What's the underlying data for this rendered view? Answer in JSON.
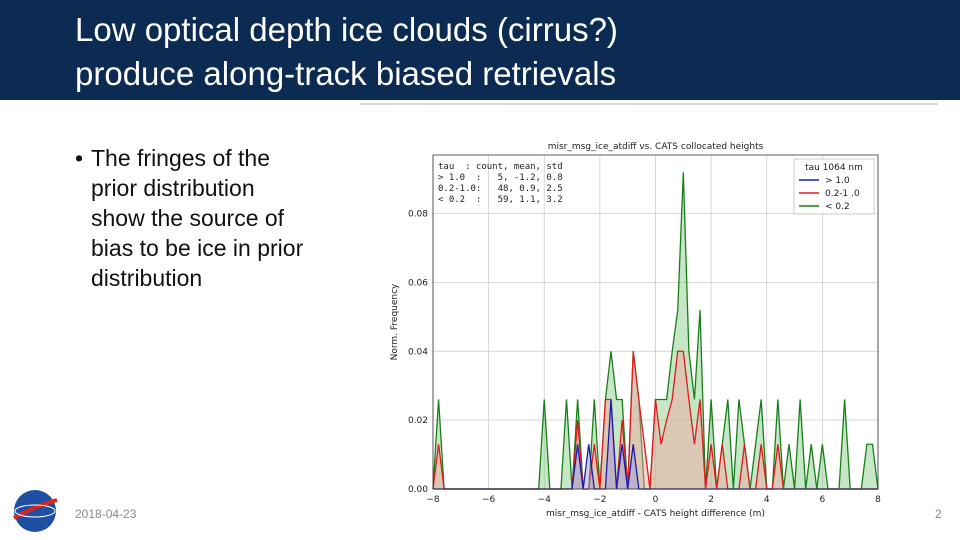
{
  "slide": {
    "title": [
      "Low optical depth ice clouds (cirrus?)",
      "produce along-track biased retrievals"
    ],
    "bullet_lines": [
      "The fringes of the",
      "prior distribution",
      "show the source of",
      "bias to be ice in prior",
      "distribution"
    ],
    "date": "2018-04-23",
    "page_number": "2"
  },
  "chart_data": {
    "type": "area",
    "title": "misr_msg_ice_atdiff vs. CATS collocated heights",
    "x_label": "misr_msg_ice_atdiff - CATS height difference (m)",
    "y_label": "Norm. Frequency",
    "annotations": [
      "tau  : count, mean, std",
      "> 1.0  :   5, -1.2, 0.8",
      "0.2-1.0:   48, 0.9, 2.5",
      "< 0.2  :   59, 1.1, 3.2"
    ],
    "legend_title": "tau 1064 nm",
    "legend_position": "upper right",
    "grid": true,
    "xlim": [
      -8,
      8
    ],
    "ylim": [
      0,
      0.097
    ],
    "xticks": [
      {
        "value": -8,
        "label": "−8"
      },
      {
        "value": -6,
        "label": "−6"
      },
      {
        "value": -4,
        "label": "−4"
      },
      {
        "value": -2,
        "label": "−2"
      },
      0,
      2,
      4,
      6,
      8
    ],
    "yticks": [
      {
        "value": 0,
        "label": "0.00"
      },
      0.02,
      0.04,
      0.06,
      0.08
    ],
    "x": [
      -8,
      -7.8,
      -7.6,
      -7.4,
      -7.2,
      -7,
      -6.8,
      -6.6,
      -6.4,
      -6.2,
      -6,
      -5.8,
      -5.6,
      -5.4,
      -5.2,
      -5,
      -4.8,
      -4.6,
      -4.4,
      -4.2,
      -4,
      -3.8,
      -3.6,
      -3.4,
      -3.2,
      -3,
      -2.8,
      -2.6,
      -2.4,
      -2.2,
      -2,
      -1.8,
      -1.6,
      -1.4,
      -1.2,
      -1,
      -0.8,
      -0.6,
      -0.4,
      -0.2,
      0,
      0.2,
      0.4,
      0.6,
      0.8,
      1,
      1.2,
      1.4,
      1.6,
      1.8,
      2,
      2.2,
      2.4,
      2.6,
      2.8,
      3,
      3.2,
      3.4,
      3.6,
      3.8,
      4,
      4.2,
      4.4,
      4.6,
      4.8,
      5,
      5.2,
      5.4,
      5.6,
      5.8,
      6,
      6.2,
      6.4,
      6.6,
      6.8,
      7,
      7.2,
      7.4,
      7.6,
      7.8,
      8
    ],
    "series": [
      {
        "name": "< 0.2",
        "color": "#1a7f1a",
        "values": [
          0,
          0.026,
          0,
          0,
          0,
          0,
          0,
          0,
          0,
          0,
          0,
          0,
          0,
          0,
          0,
          0,
          0,
          0,
          0,
          0,
          0.026,
          0,
          0,
          0,
          0.026,
          0,
          0.026,
          0,
          0,
          0.026,
          0,
          0.026,
          0.04,
          0.026,
          0.026,
          0,
          0.04,
          0.026,
          0,
          0,
          0.026,
          0.026,
          0.026,
          0.04,
          0.052,
          0.092,
          0.04,
          0.026,
          0.052,
          0,
          0.026,
          0,
          0.013,
          0.026,
          0,
          0.026,
          0.013,
          0,
          0.013,
          0.026,
          0,
          0,
          0.026,
          0,
          0.013,
          0,
          0.026,
          0,
          0.013,
          0,
          0.013,
          0,
          0,
          0,
          0.026,
          0,
          0,
          0,
          0.013,
          0.013,
          0
        ]
      },
      {
        "name": "0.2-1 .0",
        "color": "#e01b1b",
        "values": [
          0,
          0.013,
          0,
          0,
          0,
          0,
          0,
          0,
          0,
          0,
          0,
          0,
          0,
          0,
          0,
          0,
          0,
          0,
          0,
          0,
          0,
          0,
          0,
          0,
          0,
          0,
          0.02,
          0,
          0,
          0.013,
          0,
          0.026,
          0.026,
          0,
          0.02,
          0,
          0.04,
          0.026,
          0.013,
          0,
          0.026,
          0.013,
          0.02,
          0.026,
          0.04,
          0.04,
          0.026,
          0.013,
          0.026,
          0,
          0.013,
          0,
          0.013,
          0,
          0,
          0,
          0.013,
          0,
          0,
          0.013,
          0,
          0,
          0.013,
          0,
          0,
          0,
          0,
          0,
          0,
          0,
          0,
          0,
          0,
          0,
          0,
          0,
          0,
          0,
          0,
          0,
          0
        ]
      },
      {
        "name": "> 1.0",
        "color": "#1c1ca8",
        "values": [
          0,
          0,
          0,
          0,
          0,
          0,
          0,
          0,
          0,
          0,
          0,
          0,
          0,
          0,
          0,
          0,
          0,
          0,
          0,
          0,
          0,
          0,
          0,
          0,
          0,
          0,
          0.013,
          0,
          0.013,
          0,
          0,
          0,
          0.026,
          0,
          0.013,
          0,
          0.013,
          0,
          0,
          0,
          0,
          0,
          0,
          0,
          0,
          0,
          0,
          0,
          0,
          0,
          0,
          0,
          0,
          0,
          0,
          0,
          0,
          0,
          0,
          0,
          0,
          0,
          0,
          0,
          0,
          0,
          0,
          0,
          0,
          0,
          0,
          0,
          0,
          0,
          0,
          0,
          0,
          0,
          0,
          0,
          0
        ]
      }
    ]
  }
}
